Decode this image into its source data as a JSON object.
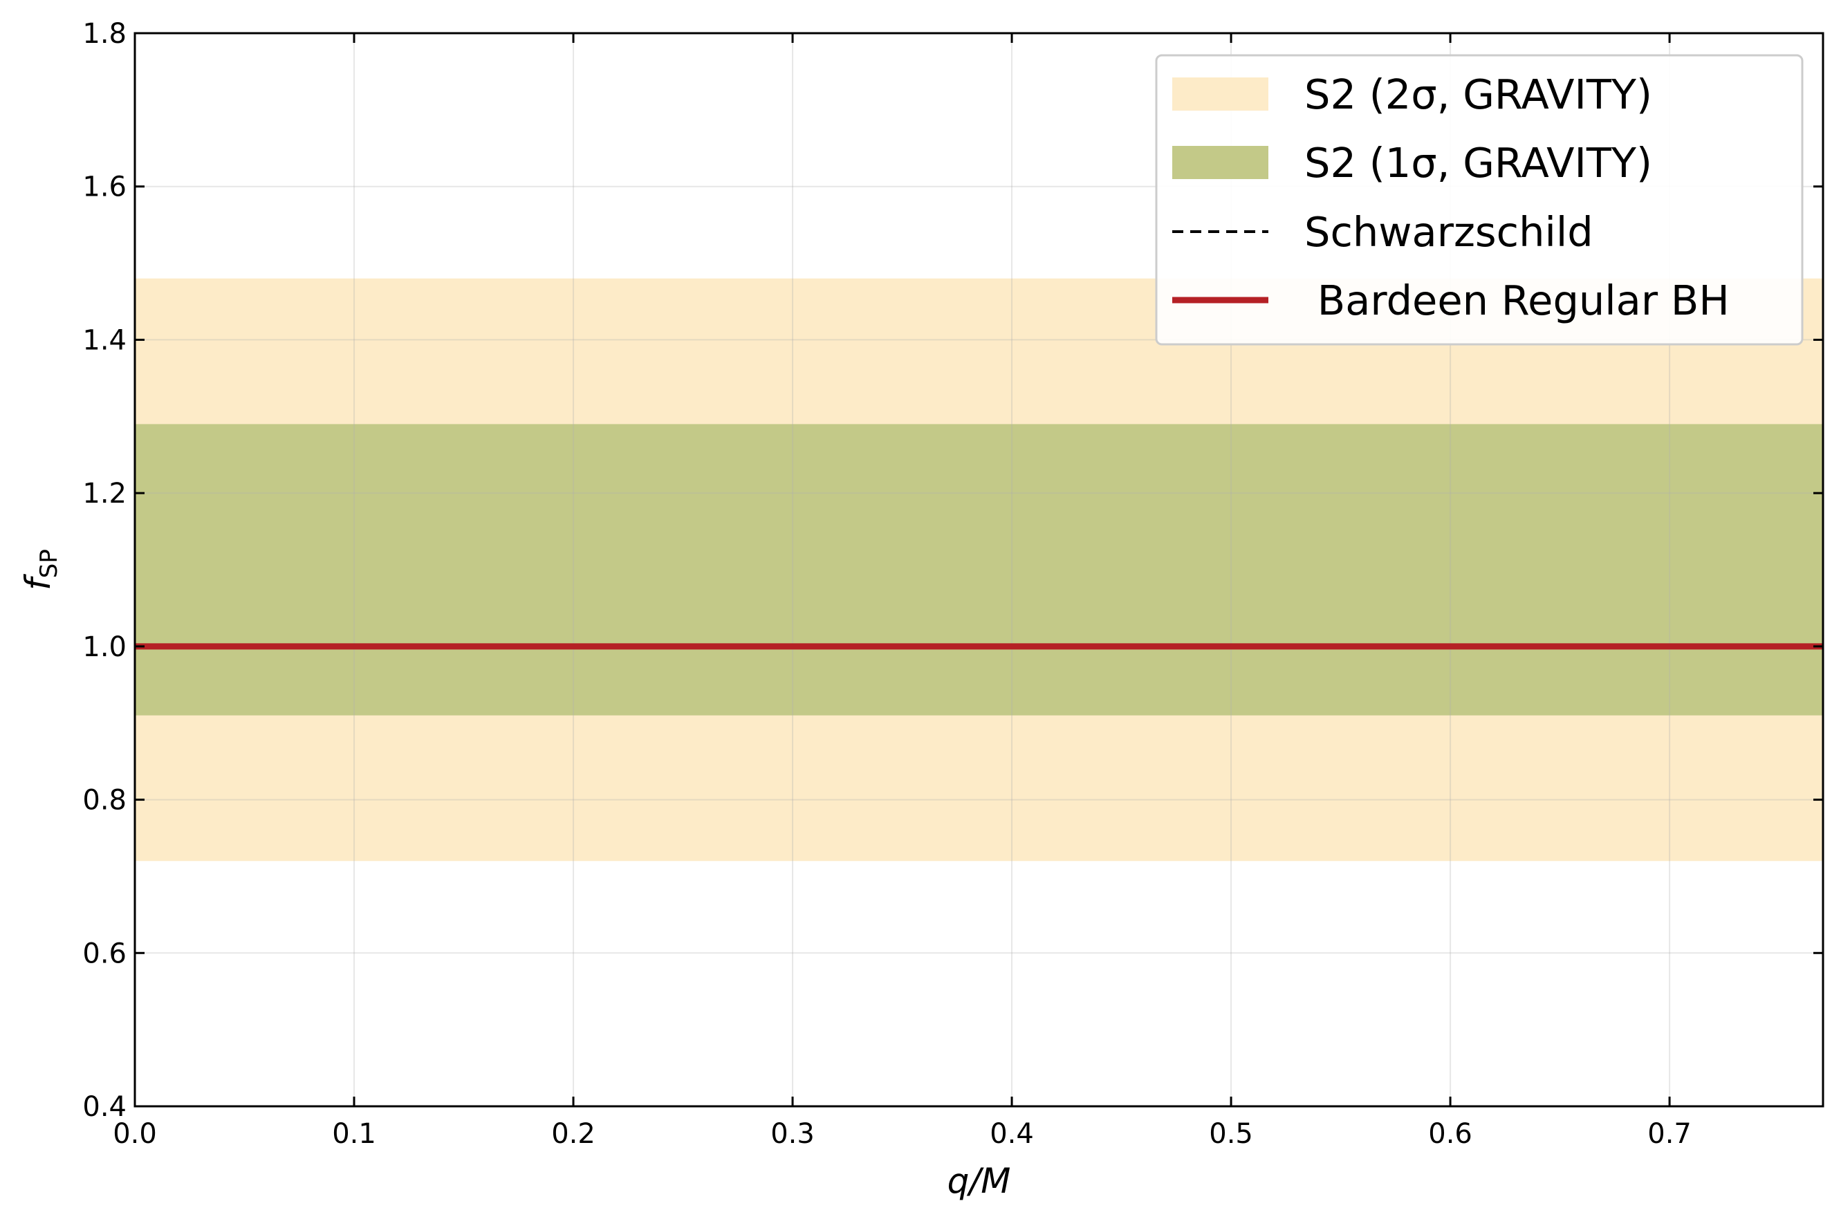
{
  "chart_data": {
    "type": "line",
    "title": "",
    "xlabel": "q/M",
    "ylabel_main": "f",
    "ylabel_sub": "SP",
    "xlim": [
      0.0,
      0.77
    ],
    "ylim": [
      0.4,
      1.8
    ],
    "xticks": [
      0.0,
      0.1,
      0.2,
      0.3,
      0.4,
      0.5,
      0.6,
      0.7
    ],
    "yticks": [
      0.4,
      0.6,
      0.8,
      1.0,
      1.2,
      1.4,
      1.6,
      1.8
    ],
    "xtick_labels": [
      "0.0",
      "0.1",
      "0.2",
      "0.3",
      "0.4",
      "0.5",
      "0.6",
      "0.7"
    ],
    "ytick_labels": [
      "0.4",
      "0.6",
      "0.8",
      "1.0",
      "1.2",
      "1.4",
      "1.6",
      "1.8"
    ],
    "grid": true,
    "legend_position": "top-right",
    "bands": [
      {
        "name": "S2 (2σ, GRAVITY)",
        "ymin": 0.72,
        "ymax": 1.48,
        "color": "#fdebc8"
      },
      {
        "name": "S2 (1σ, GRAVITY)",
        "ymin": 0.91,
        "ymax": 1.29,
        "color": "#c3c988"
      }
    ],
    "series": [
      {
        "name": "Schwarzschild",
        "style": "dashed",
        "color": "#000000",
        "x": [
          0.0,
          0.77
        ],
        "y": [
          1.0,
          1.0
        ]
      },
      {
        "name": " Bardeen Regular BH",
        "style": "solid",
        "color": "#b52025",
        "x": [
          0.0,
          0.77
        ],
        "y": [
          1.0,
          1.0
        ]
      }
    ],
    "legend": {
      "items": [
        {
          "label": "S2 (2σ, GRAVITY)",
          "kind": "patch",
          "color": "#fdebc8"
        },
        {
          "label": "S2 (1σ, GRAVITY)",
          "kind": "patch",
          "color": "#c3c988"
        },
        {
          "label": "Schwarzschild",
          "kind": "dashed",
          "color": "#000000"
        },
        {
          "label": " Bardeen Regular BH",
          "kind": "solid",
          "color": "#b52025"
        }
      ]
    }
  }
}
